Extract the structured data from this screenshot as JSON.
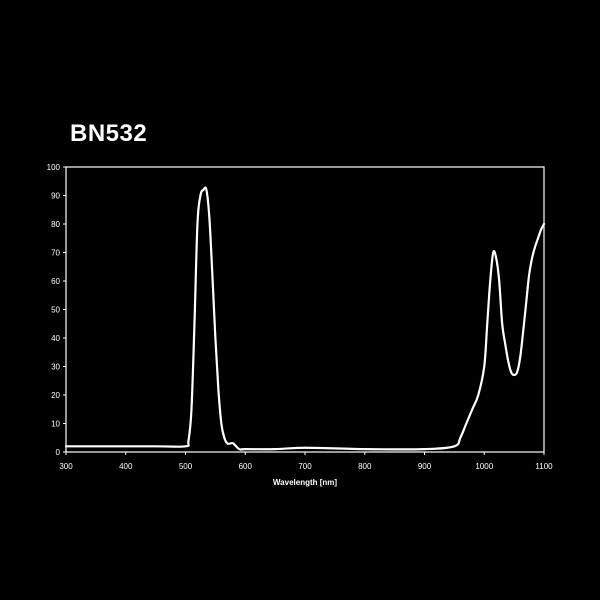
{
  "chart_data": {
    "type": "line",
    "title": "BN532",
    "xlabel": "Wavelength [nm]",
    "ylabel": "",
    "xlim": [
      300,
      1100
    ],
    "ylim": [
      0,
      100
    ],
    "x_ticks": [
      "300",
      "400",
      "500",
      "600",
      "700",
      "800",
      "900",
      "1000",
      "1100"
    ],
    "y_ticks": [
      "0",
      "10",
      "20",
      "30",
      "40",
      "50",
      "60",
      "70",
      "80",
      "90",
      "100"
    ],
    "grid": false,
    "legend": "none",
    "colors": {
      "background": "#000000",
      "line": "#ffffff",
      "frame": "#ffffff"
    },
    "series": [
      {
        "x": [
          300,
          450,
          500,
          505,
          510,
          515,
          520,
          525,
          530,
          535,
          540,
          545,
          550,
          555,
          560,
          565,
          570,
          575,
          580,
          590,
          600,
          650,
          700,
          800,
          900,
          950,
          960,
          970,
          980,
          990,
          1000,
          1005,
          1010,
          1015,
          1020,
          1025,
          1030,
          1035,
          1040,
          1045,
          1050,
          1055,
          1060,
          1065,
          1070,
          1075,
          1080,
          1085,
          1090,
          1095,
          1100
        ],
        "y": [
          2,
          2,
          2,
          4,
          15,
          45,
          80,
          90,
          92,
          92,
          82,
          62,
          40,
          22,
          10,
          5,
          3,
          3,
          3,
          1,
          1,
          1,
          1.5,
          1,
          1,
          2,
          5,
          10,
          15,
          20,
          30,
          45,
          60,
          70,
          68,
          60,
          45,
          38,
          32,
          28,
          27,
          28,
          33,
          42,
          52,
          62,
          68,
          72,
          75,
          78,
          80
        ]
      }
    ]
  }
}
